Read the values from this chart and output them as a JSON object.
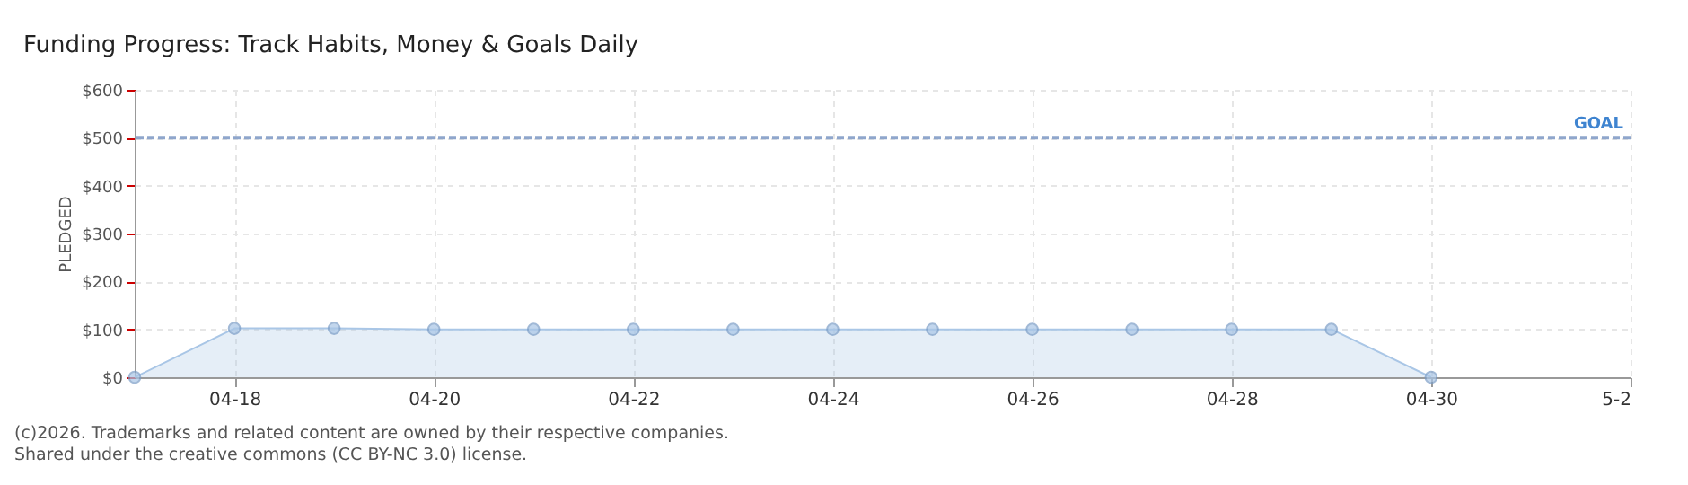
{
  "chart_data": {
    "type": "area",
    "title": "Funding Progress: Track Habits, Money & Goals Daily",
    "ylabel": "PLEDGED",
    "x": [
      "--04-17",
      "--04-18",
      "--04-19",
      "--04-20",
      "--04-21",
      "--04-22",
      "--04-23",
      "--04-24",
      "--04-25",
      "--04-26",
      "--04-27",
      "--04-28",
      "--04-29",
      "--04-30"
    ],
    "series": [
      {
        "color": "#a9c6e6",
        "values": [
          0,
          102,
          102,
          100,
          100,
          100,
          100,
          100,
          100,
          100,
          100,
          100,
          100,
          0
        ]
      }
    ],
    "xlim": [
      "--04-17",
      "--05-02"
    ],
    "xticks": [
      {
        "value": "--04-18",
        "label": "04-18"
      },
      {
        "value": "--04-20",
        "label": "04-20"
      },
      {
        "value": "--04-22",
        "label": "04-22"
      },
      {
        "value": "--04-24",
        "label": "04-24"
      },
      {
        "value": "--04-26",
        "label": "04-26"
      },
      {
        "value": "--04-28",
        "label": "04-28"
      },
      {
        "value": "--04-30",
        "label": "04-30"
      },
      {
        "value": "--05-02",
        "label": "5-2"
      }
    ],
    "ylim": [
      0,
      600
    ],
    "yticks": [
      {
        "value": 0,
        "label": "$0"
      },
      {
        "value": 100,
        "label": "$100"
      },
      {
        "value": 200,
        "label": "$200"
      },
      {
        "value": 300,
        "label": "$300"
      },
      {
        "value": 400,
        "label": "$400"
      },
      {
        "value": 500,
        "label": "$500"
      },
      {
        "value": 600,
        "label": "$600"
      }
    ],
    "ref_lines": [
      {
        "axis": "y",
        "value": 500,
        "label": "GOAL",
        "color": "#8fa6cc",
        "line_style": "dashed"
      }
    ],
    "grid": true,
    "marker": "circle",
    "line_style": "solid",
    "annotations": [
      "(c)2026. Trademarks and related content are owned by their respective companies.",
      "Shared under the creative commons (CC BY-NC 3.0) license."
    ]
  }
}
